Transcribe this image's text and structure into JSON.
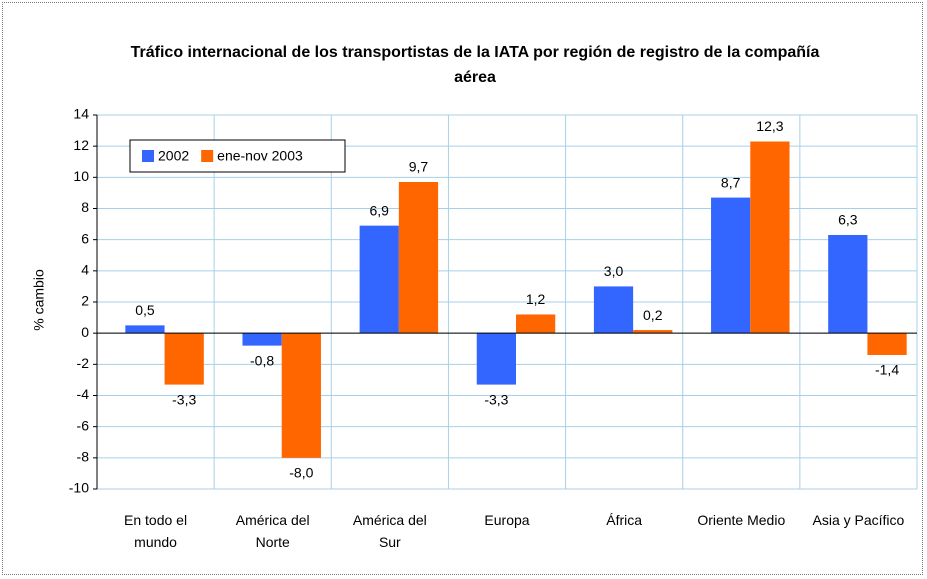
{
  "chart_data": {
    "type": "bar",
    "title": "Tráfico internacional de los transportistas de la IATA por región de registro de la compañía aérea",
    "y_label": "% cambio",
    "categories": [
      "En todo el mundo",
      "América del Norte",
      "América del Sur",
      "Europa",
      "África",
      "Oriente Medio",
      "Asia y Pacífico"
    ],
    "series": [
      {
        "name": "2002",
        "color": "#3366ff",
        "values": [
          0.5,
          -0.8,
          6.9,
          -3.3,
          3.0,
          8.7,
          6.3
        ],
        "value_labels": [
          "0,5",
          "-0,8",
          "6,9",
          "-3,3",
          "3,0",
          "8,7",
          "6,3"
        ]
      },
      {
        "name": "ene-nov 2003",
        "color": "#ff6600",
        "values": [
          -3.3,
          -8.0,
          9.7,
          1.2,
          0.2,
          12.3,
          -1.4
        ],
        "value_labels": [
          "-3,3",
          "-8,0",
          "9,7",
          "1,2",
          "0,2",
          "12,3",
          "-1,4"
        ]
      }
    ],
    "ylim": [
      -10,
      14
    ],
    "yticks": [
      -10,
      -8,
      -6,
      -4,
      -2,
      0,
      2,
      4,
      6,
      8,
      10,
      12,
      14
    ],
    "grid": true,
    "legend": "upper left"
  }
}
